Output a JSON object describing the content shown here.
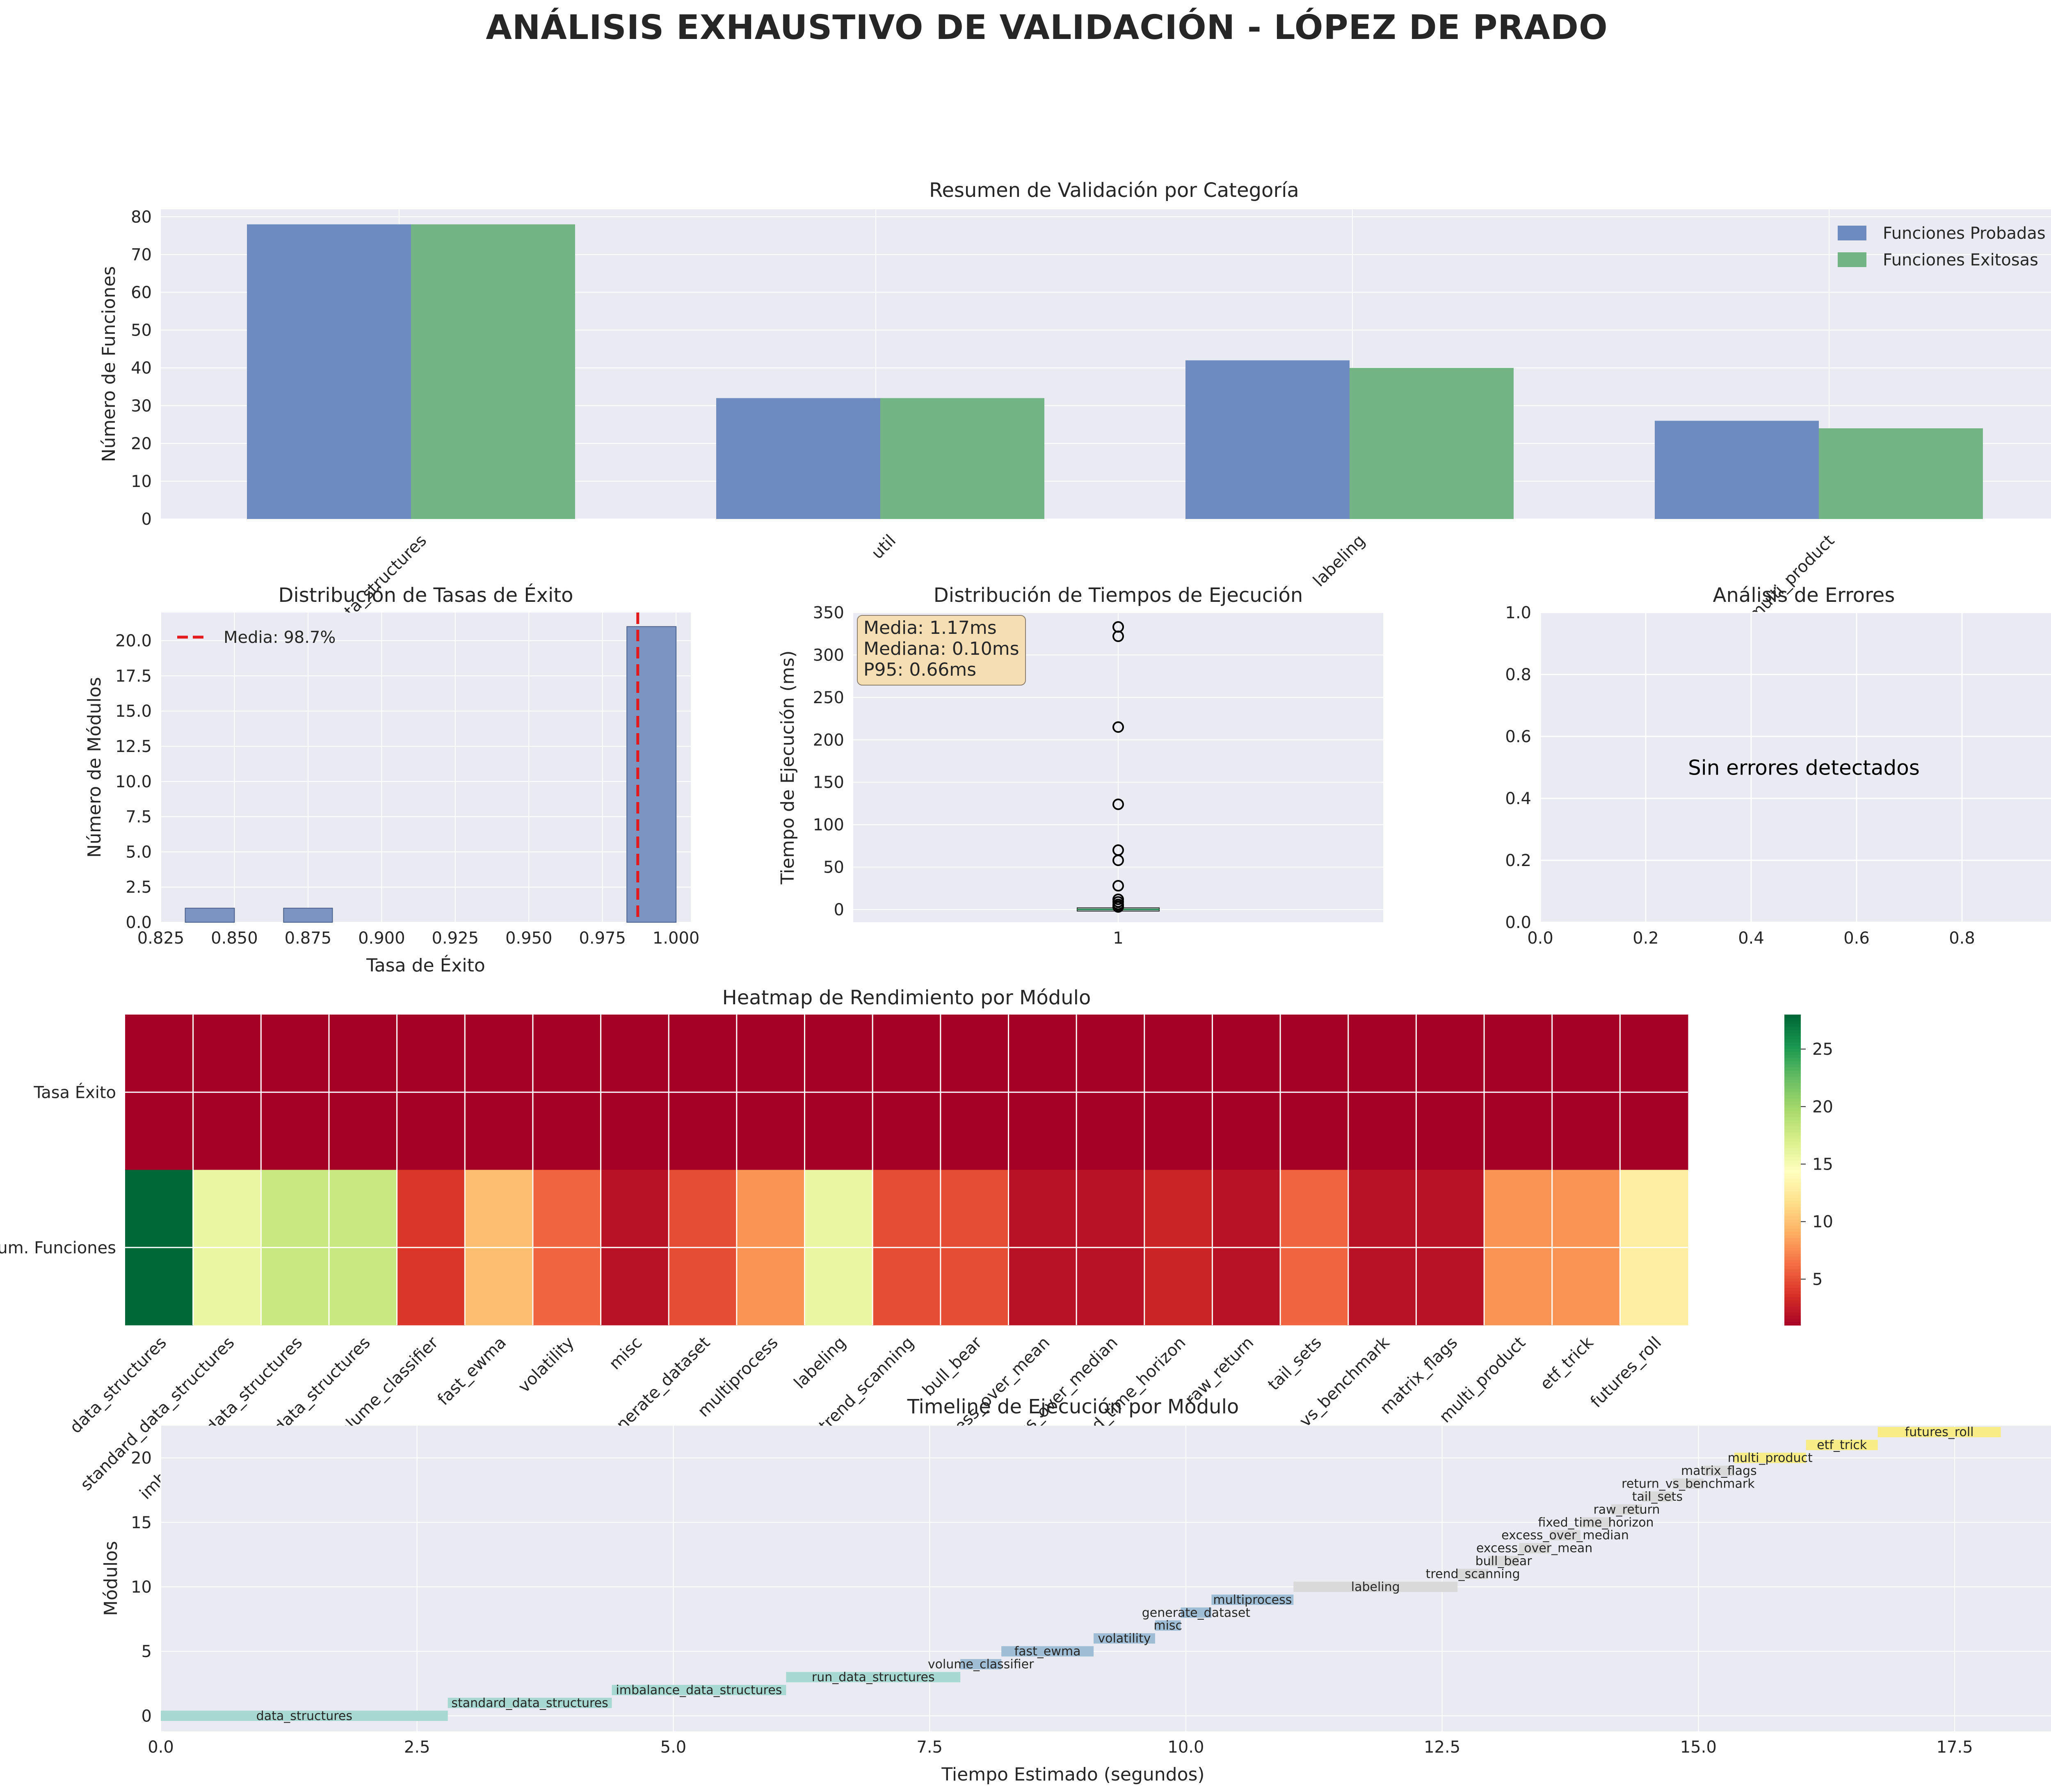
{
  "page_title": "ANÁLISIS EXHAUSTIVO DE VALIDACIÓN - LÓPEZ DE PRADO",
  "chart_data": [
    {
      "id": "summary",
      "type": "bar",
      "title": "Resumen de Validación por Categoría",
      "xlabel": "",
      "ylabel": "Número de Funciones",
      "categories": [
        "data_structures",
        "util",
        "labeling",
        "multi_product"
      ],
      "series": [
        {
          "name": "Funciones Probadas",
          "values": [
            78,
            32,
            42,
            26
          ],
          "color": "#6d8bbf"
        },
        {
          "name": "Funciones Exitosas",
          "values": [
            78,
            32,
            40,
            24
          ],
          "color": "#73b484"
        }
      ],
      "ylim": [
        0,
        82
      ],
      "yticks": [
        0,
        10,
        20,
        30,
        40,
        50,
        60,
        70,
        80
      ],
      "grid": true,
      "legend": "top-right"
    },
    {
      "id": "success-hist",
      "type": "bar",
      "title": "Distribución de Tasas de Éxito",
      "xlabel": "Tasa de Éxito",
      "ylabel": "Número de Módulos",
      "bins": [
        {
          "x0": 0.8333,
          "x1": 0.85,
          "count": 1
        },
        {
          "x0": 0.8667,
          "x1": 0.8833,
          "count": 1
        },
        {
          "x0": 0.9833,
          "x1": 1.0,
          "count": 21
        }
      ],
      "mean_line": {
        "value": 0.987,
        "label": "Media: 98.7%",
        "color": "#e31a1c"
      },
      "xlim": [
        0.825,
        1.005
      ],
      "ylim": [
        0,
        22
      ],
      "xticks": [
        "0.825",
        "0.850",
        "0.875",
        "0.900",
        "0.925",
        "0.950",
        "0.975",
        "1.000"
      ],
      "yticks": [
        "0.0",
        "2.5",
        "5.0",
        "7.5",
        "10.0",
        "12.5",
        "15.0",
        "17.5",
        "20.0"
      ],
      "grid": true,
      "legend": "top-left"
    },
    {
      "id": "exec-times",
      "type": "scatter",
      "title": "Distribución de Tiempos de Ejecución",
      "xlabel": "",
      "ylabel": "Tiempo de Ejecución (ms)",
      "category": "1",
      "outliers": [
        333,
        322,
        215,
        124,
        70,
        58,
        28,
        12,
        9,
        6,
        4,
        3
      ],
      "box_median": 0.1,
      "stats_box": [
        "Media: 1.17ms",
        "Mediana: 0.10ms",
        "P95: 0.66ms"
      ],
      "ylim": [
        -15,
        350
      ],
      "yticks": [
        0,
        50,
        100,
        150,
        200,
        250,
        300,
        350
      ]
    },
    {
      "id": "errors",
      "type": "scatter",
      "title": "Análisis de Errores",
      "message": "Sin errores detectados",
      "xlim": [
        0,
        1
      ],
      "ylim": [
        0,
        1
      ],
      "xticks": [
        "0.0",
        "0.2",
        "0.4",
        "0.6",
        "0.8",
        "1.0"
      ],
      "yticks": [
        "0.0",
        "0.2",
        "0.4",
        "0.6",
        "0.8",
        "1.0"
      ]
    },
    {
      "id": "heatmap",
      "type": "heatmap",
      "title": "Heatmap de Rendimiento por Módulo",
      "rows": [
        "Tasa Éxito",
        "Num. Funciones"
      ],
      "columns": [
        "data_structures",
        "standard_data_structures",
        "imbalance_data_structures",
        "run_data_structures",
        "volume_classifier",
        "fast_ewma",
        "volatility",
        "misc",
        "generate_dataset",
        "multiprocess",
        "labeling",
        "trend_scanning",
        "bull_bear",
        "excess_over_mean",
        "excess_over_median",
        "fixed_time_horizon",
        "raw_return",
        "tail_sets",
        "return_vs_benchmark",
        "matrix_flags",
        "multi_product",
        "etf_trick",
        "futures_roll"
      ],
      "values": [
        [
          1,
          1,
          1,
          1,
          1,
          1,
          1,
          1,
          1,
          1,
          1,
          1,
          1,
          1,
          1,
          1,
          1,
          1,
          1,
          1,
          1,
          1,
          1
        ],
        [
          28,
          16,
          18,
          18,
          4,
          10,
          6,
          2,
          5,
          8,
          16,
          5,
          5,
          2,
          2,
          3,
          2,
          6,
          2,
          2,
          8,
          8,
          13
        ]
      ],
      "colormap": "RdYlGn",
      "colorbar": {
        "min": 1,
        "max": 28,
        "ticks": [
          5,
          10,
          15,
          20,
          25
        ]
      }
    },
    {
      "id": "timeline",
      "type": "bar",
      "title": "Timeline de Ejecución por Módulo",
      "xlabel": "Tiempo Estimado (segundos)",
      "ylabel": "Módulos",
      "xlim": [
        0,
        18.6
      ],
      "ylim": [
        -1.2,
        22.5
      ],
      "xticks": [
        "0.0",
        "2.5",
        "5.0",
        "7.5",
        "10.0",
        "12.5",
        "15.0",
        "17.5"
      ],
      "yticks": [
        "0",
        "5",
        "10",
        "15",
        "20"
      ],
      "tasks": [
        {
          "name": "data_structures",
          "start": 0.0,
          "duration": 2.8,
          "group": 0
        },
        {
          "name": "standard_data_structures",
          "start": 2.8,
          "duration": 1.6,
          "group": 0
        },
        {
          "name": "imbalance_data_structures",
          "start": 4.4,
          "duration": 1.7,
          "group": 0
        },
        {
          "name": "run_data_structures",
          "start": 6.1,
          "duration": 1.7,
          "group": 0
        },
        {
          "name": "volume_classifier",
          "start": 7.8,
          "duration": 0.4,
          "group": 1
        },
        {
          "name": "fast_ewma",
          "start": 8.2,
          "duration": 0.9,
          "group": 1
        },
        {
          "name": "volatility",
          "start": 9.1,
          "duration": 0.6,
          "group": 1
        },
        {
          "name": "misc",
          "start": 9.7,
          "duration": 0.25,
          "group": 1
        },
        {
          "name": "generate_dataset",
          "start": 9.95,
          "duration": 0.3,
          "group": 1
        },
        {
          "name": "multiprocess",
          "start": 10.25,
          "duration": 0.8,
          "group": 1
        },
        {
          "name": "labeling",
          "start": 11.05,
          "duration": 1.6,
          "group": 2
        },
        {
          "name": "trend_scanning",
          "start": 12.65,
          "duration": 0.3,
          "group": 2
        },
        {
          "name": "bull_bear",
          "start": 12.95,
          "duration": 0.3,
          "group": 2
        },
        {
          "name": "excess_over_mean",
          "start": 13.25,
          "duration": 0.3,
          "group": 2
        },
        {
          "name": "excess_over_median",
          "start": 13.55,
          "duration": 0.3,
          "group": 2
        },
        {
          "name": "fixed_time_horizon",
          "start": 13.85,
          "duration": 0.3,
          "group": 2
        },
        {
          "name": "raw_return",
          "start": 14.15,
          "duration": 0.3,
          "group": 2
        },
        {
          "name": "tail_sets",
          "start": 14.45,
          "duration": 0.3,
          "group": 2
        },
        {
          "name": "return_vs_benchmark",
          "start": 14.75,
          "duration": 0.3,
          "group": 2
        },
        {
          "name": "matrix_flags",
          "start": 15.05,
          "duration": 0.3,
          "group": 2
        },
        {
          "name": "multi_product",
          "start": 15.35,
          "duration": 0.7,
          "group": 3
        },
        {
          "name": "etf_trick",
          "start": 16.05,
          "duration": 0.7,
          "group": 3
        },
        {
          "name": "futures_roll",
          "start": 16.75,
          "duration": 1.2,
          "group": 3
        }
      ],
      "group_colors": [
        "#a8d8d2",
        "#9fbdd4",
        "#d9d9d9",
        "#f7ec85"
      ],
      "grid": true
    }
  ]
}
